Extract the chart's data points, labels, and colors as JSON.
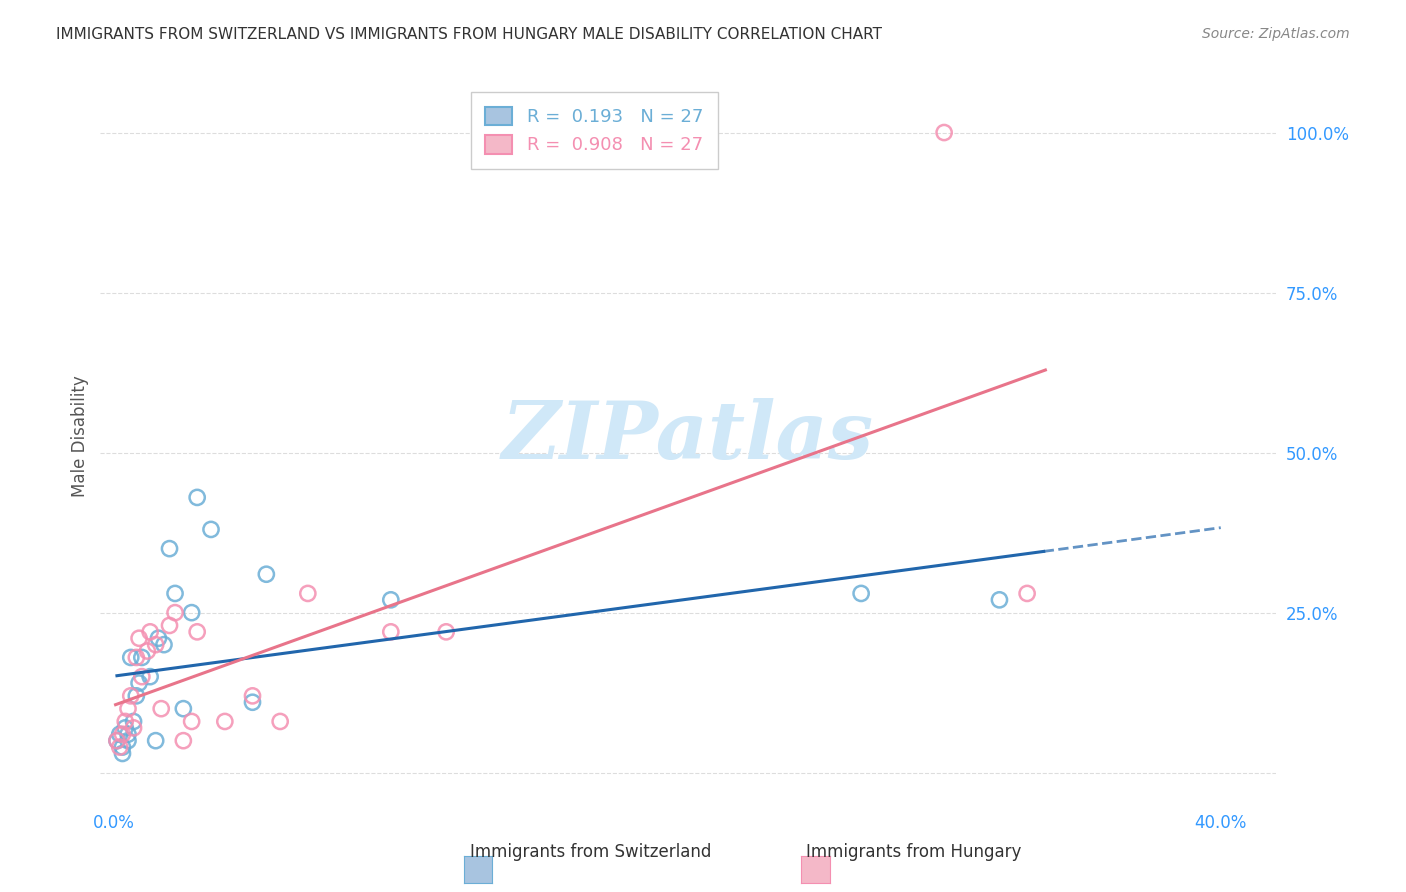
{
  "title": "IMMIGRANTS FROM SWITZERLAND VS IMMIGRANTS FROM HUNGARY MALE DISABILITY CORRELATION CHART",
  "source": "Source: ZipAtlas.com",
  "xlabel_bottom": "",
  "ylabel": "Male Disability",
  "x_ticks": [
    0.0,
    0.1,
    0.2,
    0.3,
    0.4
  ],
  "x_tick_labels": [
    "0.0%",
    "",
    "",
    "",
    "40.0%"
  ],
  "y_ticks": [
    0.0,
    0.25,
    0.5,
    0.75,
    1.0
  ],
  "y_tick_labels": [
    "",
    "25.0%",
    "50.0%",
    "75.0%",
    "100.0%"
  ],
  "xlim": [
    -0.005,
    0.42
  ],
  "ylim": [
    -0.05,
    1.1
  ],
  "legend_r1": "R =  0.193   N = 27",
  "legend_r2": "R =  0.908   N = 27",
  "legend_color1": "#a8c4e0",
  "legend_color2": "#f4b8c8",
  "color_swiss": "#6baed6",
  "color_hungary": "#f48fb1",
  "trendline_swiss_color": "#2166ac",
  "trendline_hungary_color": "#e8748a",
  "watermark_text": "ZIPatlas",
  "watermark_color": "#d0e8f8",
  "swiss_x": [
    0.001,
    0.002,
    0.003,
    0.003,
    0.004,
    0.005,
    0.005,
    0.006,
    0.007,
    0.008,
    0.009,
    0.01,
    0.013,
    0.015,
    0.016,
    0.018,
    0.02,
    0.022,
    0.025,
    0.028,
    0.03,
    0.035,
    0.05,
    0.055,
    0.1,
    0.27,
    0.32
  ],
  "swiss_y": [
    0.05,
    0.06,
    0.04,
    0.03,
    0.07,
    0.06,
    0.05,
    0.18,
    0.08,
    0.12,
    0.14,
    0.18,
    0.15,
    0.05,
    0.21,
    0.2,
    0.35,
    0.28,
    0.1,
    0.25,
    0.43,
    0.38,
    0.11,
    0.31,
    0.27,
    0.28,
    0.27
  ],
  "hungary_x": [
    0.001,
    0.002,
    0.003,
    0.004,
    0.005,
    0.006,
    0.007,
    0.008,
    0.009,
    0.01,
    0.012,
    0.013,
    0.015,
    0.017,
    0.02,
    0.022,
    0.025,
    0.028,
    0.03,
    0.04,
    0.05,
    0.06,
    0.07,
    0.1,
    0.12,
    0.3,
    0.33
  ],
  "hungary_y": [
    0.05,
    0.04,
    0.06,
    0.08,
    0.1,
    0.12,
    0.07,
    0.18,
    0.21,
    0.15,
    0.19,
    0.22,
    0.2,
    0.1,
    0.23,
    0.25,
    0.05,
    0.08,
    0.22,
    0.08,
    0.12,
    0.08,
    0.28,
    0.22,
    0.22,
    1.0,
    0.28
  ],
  "bg_color": "#ffffff",
  "grid_color": "#dddddd"
}
